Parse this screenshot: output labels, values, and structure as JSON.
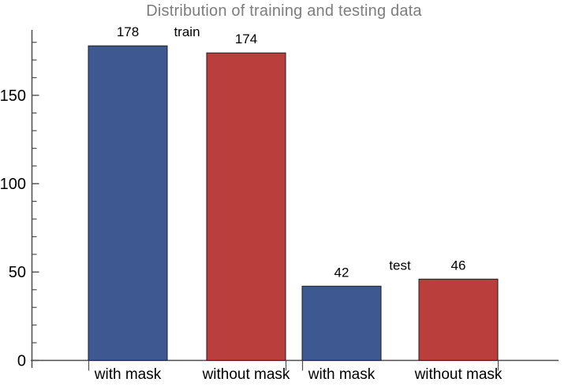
{
  "chart_data": {
    "type": "bar",
    "title": "Distribution of training and testing data",
    "categories": [
      "with mask",
      "without mask",
      "with mask",
      "without mask"
    ],
    "values": [
      178,
      174,
      42,
      46
    ],
    "value_labels": [
      "178",
      "174",
      "42",
      "46"
    ],
    "bar_colors": [
      "#3E5892",
      "#B93E3C",
      "#3E5892",
      "#B93E3C"
    ],
    "groups": [
      {
        "label": "train",
        "bar_indexes": [
          0,
          1
        ]
      },
      {
        "label": "test",
        "bar_indexes": [
          2,
          3
        ]
      }
    ],
    "xlabel": "",
    "ylabel": "",
    "y_ticks": [
      0,
      50,
      100,
      150
    ],
    "y_tick_labels": [
      "0",
      "50",
      "100",
      "150"
    ],
    "y_minor_tick_step": 10,
    "ylim": [
      0,
      187
    ],
    "grid": false,
    "legend": null,
    "colors": {
      "title": "#7d7d7d",
      "axis": "#4d4d4d",
      "bar_edge": "#1f1f1f",
      "text": "#000000"
    }
  }
}
